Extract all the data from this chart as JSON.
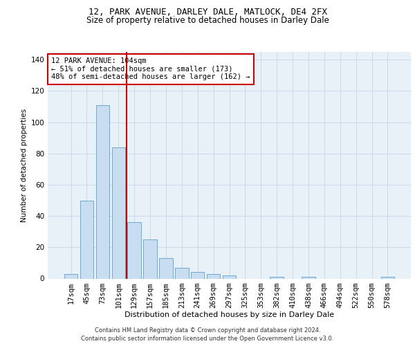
{
  "title1": "12, PARK AVENUE, DARLEY DALE, MATLOCK, DE4 2FX",
  "title2": "Size of property relative to detached houses in Darley Dale",
  "xlabel": "Distribution of detached houses by size in Darley Dale",
  "ylabel": "Number of detached properties",
  "footnote": "Contains HM Land Registry data © Crown copyright and database right 2024.\nContains public sector information licensed under the Open Government Licence v3.0.",
  "annotation_line1": "12 PARK AVENUE: 104sqm",
  "annotation_line2": "← 51% of detached houses are smaller (173)",
  "annotation_line3": "48% of semi-detached houses are larger (162) →",
  "bar_color": "#c9ddf0",
  "bar_edge_color": "#6aaad4",
  "vline_color": "#cc0000",
  "vline_x": 3.5,
  "categories": [
    "17sqm",
    "45sqm",
    "73sqm",
    "101sqm",
    "129sqm",
    "157sqm",
    "185sqm",
    "213sqm",
    "241sqm",
    "269sqm",
    "297sqm",
    "325sqm",
    "353sqm",
    "382sqm",
    "410sqm",
    "438sqm",
    "466sqm",
    "494sqm",
    "522sqm",
    "550sqm",
    "578sqm"
  ],
  "values": [
    3,
    50,
    111,
    84,
    36,
    25,
    13,
    7,
    4,
    3,
    2,
    0,
    0,
    1,
    0,
    1,
    0,
    0,
    0,
    0,
    1
  ],
  "ylim": [
    0,
    145
  ],
  "yticks": [
    0,
    20,
    40,
    60,
    80,
    100,
    120,
    140
  ],
  "grid_color": "#cdd8e8",
  "bg_color": "#e8f0f8",
  "fig_bg_color": "#ffffff",
  "annotation_box_facecolor": "#ffffff",
  "annotation_box_edgecolor": "#cc0000",
  "title1_fontsize": 9.0,
  "title2_fontsize": 8.5,
  "xlabel_fontsize": 8.0,
  "ylabel_fontsize": 7.5,
  "footnote_fontsize": 6.0,
  "tick_fontsize": 7.5,
  "ytick_fontsize": 7.5
}
